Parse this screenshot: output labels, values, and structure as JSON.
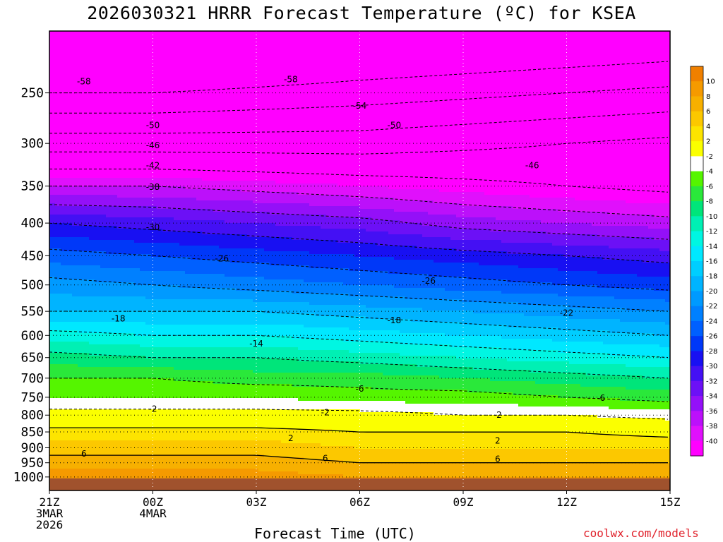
{
  "title": "2026030321 HRRR Forecast Temperature (ºC) for KSEA",
  "credit": "coolwx.com/models",
  "chart_data": {
    "type": "heatmap",
    "title": "2026030321 HRRR Forecast Temperature (ºC) for KSEA",
    "xlabel": "Forecast Time (UTC)",
    "ylabel": "",
    "y_scale": "log-pressure",
    "ylim": [
      1050,
      200
    ],
    "xlim": [
      0,
      18
    ],
    "grid": true,
    "x_ticks": [
      {
        "h": 0,
        "lines": [
          "21Z",
          "3MAR",
          "2026"
        ]
      },
      {
        "h": 3,
        "lines": [
          "00Z",
          "4MAR"
        ]
      },
      {
        "h": 6,
        "lines": [
          "03Z"
        ]
      },
      {
        "h": 9,
        "lines": [
          "06Z"
        ]
      },
      {
        "h": 12,
        "lines": [
          "09Z"
        ]
      },
      {
        "h": 15,
        "lines": [
          "12Z"
        ]
      },
      {
        "h": 18,
        "lines": [
          "15Z"
        ]
      }
    ],
    "y_ticks": [
      250,
      300,
      350,
      400,
      450,
      500,
      550,
      600,
      650,
      700,
      750,
      800,
      850,
      900,
      950,
      1000
    ],
    "hours": [
      0,
      3,
      6,
      9,
      12,
      15,
      18
    ],
    "levels": [
      250,
      300,
      350,
      400,
      450,
      500,
      550,
      600,
      650,
      700,
      750,
      800,
      850,
      900,
      950,
      1000
    ],
    "temperatures": [
      [
        -58,
        -58,
        -57,
        -56,
        -55,
        -54,
        -53
      ],
      [
        -48,
        -48,
        -48,
        -48,
        -47,
        -46,
        -45
      ],
      [
        -38,
        -38,
        -39,
        -40,
        -41,
        -42,
        -43
      ],
      [
        -30,
        -31,
        -32,
        -33,
        -35,
        -36,
        -37
      ],
      [
        -25,
        -26,
        -27,
        -28,
        -29,
        -30,
        -31
      ],
      [
        -21,
        -22,
        -23,
        -24,
        -25,
        -26,
        -27
      ],
      [
        -18,
        -18,
        -18,
        -19,
        -20,
        -21,
        -22
      ],
      [
        -13,
        -14,
        -14,
        -15,
        -16,
        -17,
        -18
      ],
      [
        -9,
        -10,
        -10,
        -11,
        -12,
        -13,
        -14
      ],
      [
        -6,
        -6,
        -7,
        -7,
        -8,
        -9,
        -10
      ],
      [
        -4,
        -4,
        -4,
        -5,
        -5,
        -6,
        -7
      ],
      [
        -1,
        -1,
        -1,
        -1,
        -2,
        -2,
        -3
      ],
      [
        3,
        3,
        3,
        2,
        2,
        2,
        1
      ],
      [
        5,
        5,
        5,
        4,
        4,
        4,
        4
      ],
      [
        7,
        7,
        7,
        6,
        6,
        6,
        6
      ],
      [
        9,
        9,
        9,
        8,
        8,
        8,
        8
      ]
    ],
    "contour_labels": [
      {
        "value": "-58",
        "h": 1.0,
        "p": 240
      },
      {
        "value": "-58",
        "h": 7.0,
        "p": 238
      },
      {
        "value": "-54",
        "h": 9.0,
        "p": 262
      },
      {
        "value": "-50",
        "h": 3.0,
        "p": 281
      },
      {
        "value": "-50",
        "h": 10.0,
        "p": 281
      },
      {
        "value": "-46",
        "h": 3.0,
        "p": 302
      },
      {
        "value": "-46",
        "h": 14.0,
        "p": 325
      },
      {
        "value": "-42",
        "h": 3.0,
        "p": 325
      },
      {
        "value": "-38",
        "h": 3.0,
        "p": 351
      },
      {
        "value": "-30",
        "h": 3.0,
        "p": 406
      },
      {
        "value": "-26",
        "h": 5.0,
        "p": 455
      },
      {
        "value": "-26",
        "h": 11.0,
        "p": 493
      },
      {
        "value": "-22",
        "h": 15.0,
        "p": 553
      },
      {
        "value": "-18",
        "h": 2.0,
        "p": 565
      },
      {
        "value": "-18",
        "h": 10.0,
        "p": 568
      },
      {
        "value": "-14",
        "h": 6.0,
        "p": 618
      },
      {
        "value": "-6",
        "h": 9.0,
        "p": 728
      },
      {
        "value": "-6",
        "h": 16.0,
        "p": 752
      },
      {
        "value": "-2",
        "h": 3.0,
        "p": 782
      },
      {
        "value": "-2",
        "h": 8.0,
        "p": 792
      },
      {
        "value": "-2",
        "h": 13.0,
        "p": 800
      },
      {
        "value": "2",
        "h": 7.0,
        "p": 870
      },
      {
        "value": "2",
        "h": 13.0,
        "p": 877
      },
      {
        "value": "6",
        "h": 1.0,
        "p": 920
      },
      {
        "value": "6",
        "h": 8.0,
        "p": 935
      },
      {
        "value": "6",
        "h": 13.0,
        "p": 938
      }
    ],
    "colorbar": {
      "labels": [
        "10",
        "8",
        "6",
        "4",
        "2",
        "-2",
        "-4",
        "-6",
        "-8",
        "-10",
        "-12",
        "-14",
        "-16",
        "-18",
        "-20",
        "-22",
        "-24",
        "-26",
        "-28",
        "-30",
        "-32",
        "-34",
        "-36",
        "-38",
        "-40"
      ],
      "colors": [
        "#f08000",
        "#f59a00",
        "#f7b000",
        "#fcc800",
        "#fde400",
        "#fbff00",
        "#ffffff",
        "#55f500",
        "#2ae83a",
        "#00e57a",
        "#00f0b4",
        "#00f6e2",
        "#00e8ff",
        "#00ceff",
        "#00b4ff",
        "#009aff",
        "#0080ff",
        "#0060ff",
        "#0038f8",
        "#1810f2",
        "#4410f4",
        "#6c10f6",
        "#9410f8",
        "#bc10fa",
        "#e010fc",
        "#ff00ff"
      ]
    },
    "ground_color": "#a0522d",
    "background_color": "#ff00ff"
  }
}
